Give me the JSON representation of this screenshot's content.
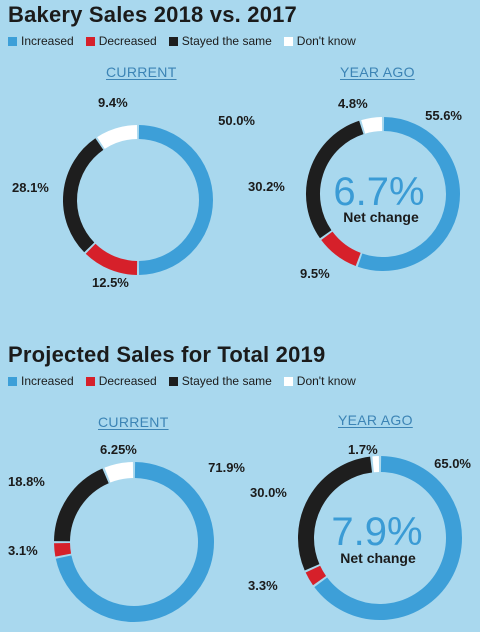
{
  "colors": {
    "increased": "#3d9fd8",
    "decreased": "#d6202a",
    "same": "#1e1e1e",
    "dont_know": "#ffffff"
  },
  "legend": {
    "increased": "Increased",
    "decreased": "Decreased",
    "same": "Stayed the same",
    "dont_know": "Don't know"
  },
  "section1": {
    "title": "Bakery Sales 2018 vs. 2017",
    "current_label": "CURRENT",
    "year_ago_label": "YEAR AGO",
    "net_value": "6.7%",
    "net_label": "Net change"
  },
  "section2": {
    "title": "Projected Sales for Total 2019",
    "current_label": "CURRENT",
    "year_ago_label": "YEAR AGO",
    "net_value": "7.9%",
    "net_label": "Net change"
  },
  "chart_data": [
    {
      "type": "pie",
      "title": "Bakery Sales 2018 vs. 2017",
      "subtitle": "CURRENT",
      "categories": [
        "Increased",
        "Decreased",
        "Stayed the same",
        "Don't know"
      ],
      "values": [
        50.0,
        12.5,
        28.1,
        9.4
      ],
      "labels": [
        "50.0%",
        "12.5%",
        "28.1%",
        "9.4%"
      ]
    },
    {
      "type": "pie",
      "title": "Bakery Sales 2018 vs. 2017",
      "subtitle": "YEAR AGO",
      "categories": [
        "Increased",
        "Decreased",
        "Stayed the same",
        "Don't know"
      ],
      "values": [
        55.6,
        9.5,
        30.2,
        4.8
      ],
      "labels": [
        "55.6%",
        "9.5%",
        "30.2%",
        "4.8%"
      ]
    },
    {
      "type": "pie",
      "title": "Projected Sales for Total 2019",
      "subtitle": "CURRENT",
      "categories": [
        "Increased",
        "Decreased",
        "Stayed the same",
        "Don't know"
      ],
      "values": [
        71.9,
        3.1,
        18.8,
        6.25
      ],
      "labels": [
        "71.9%",
        "3.1%",
        "18.8%",
        "6.25%"
      ]
    },
    {
      "type": "pie",
      "title": "Projected Sales for Total 2019",
      "subtitle": "YEAR AGO",
      "categories": [
        "Increased",
        "Decreased",
        "Stayed the same",
        "Don't know"
      ],
      "values": [
        65.0,
        3.3,
        30.0,
        1.7
      ],
      "labels": [
        "65.0%",
        "3.3%",
        "30.0%",
        "1.7%"
      ]
    }
  ]
}
